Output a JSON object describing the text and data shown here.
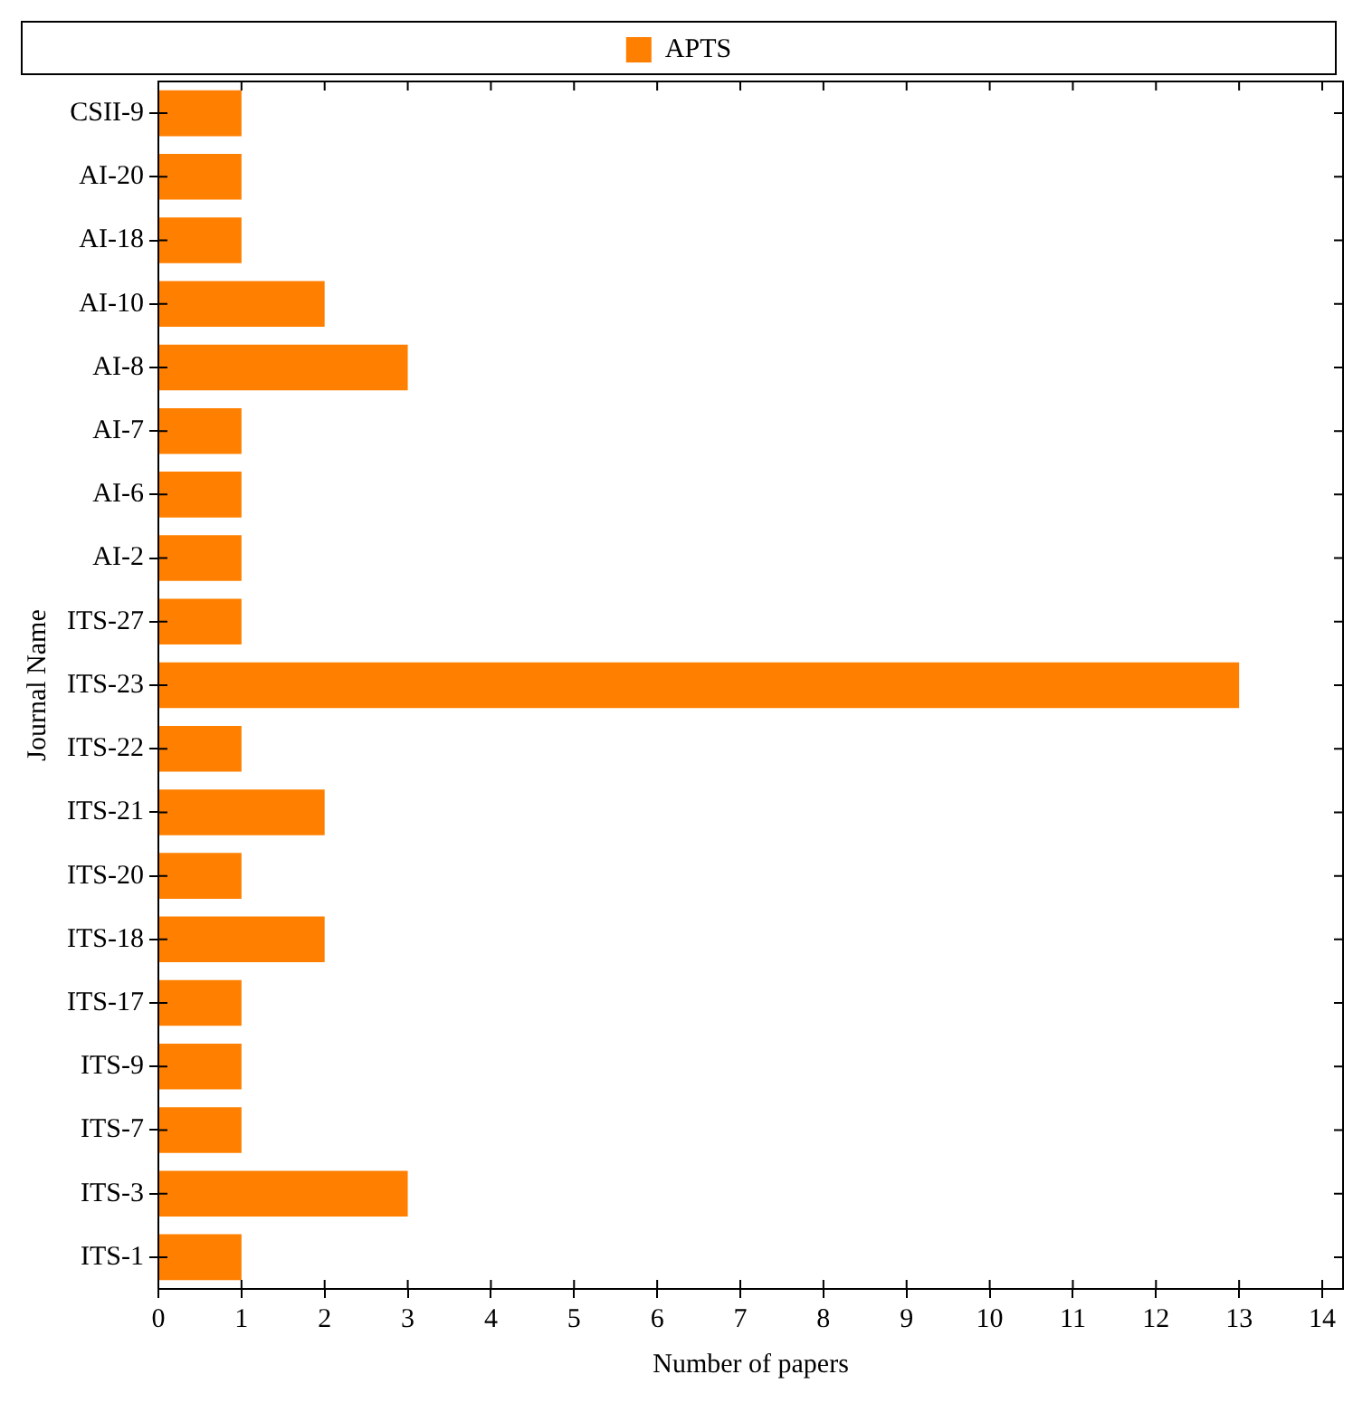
{
  "chart_data": {
    "type": "bar",
    "orientation": "horizontal",
    "xlabel": "Number of papers",
    "ylabel": "Journal Name",
    "categories": [
      "CSII-9",
      "AI-20",
      "AI-18",
      "AI-10",
      "AI-8",
      "AI-7",
      "AI-6",
      "AI-2",
      "ITS-27",
      "ITS-23",
      "ITS-22",
      "ITS-21",
      "ITS-20",
      "ITS-18",
      "ITS-17",
      "ITS-9",
      "ITS-7",
      "ITS-3",
      "ITS-1"
    ],
    "series": [
      {
        "name": "APTS",
        "color": "#ff8000",
        "values": [
          1,
          1,
          1,
          2,
          3,
          1,
          1,
          1,
          1,
          13,
          1,
          2,
          1,
          2,
          1,
          1,
          1,
          3,
          1
        ]
      }
    ],
    "xlim": [
      0,
      14.25
    ],
    "xticks": [
      0,
      1,
      2,
      3,
      4,
      5,
      6,
      7,
      8,
      9,
      10,
      11,
      12,
      13,
      14
    ],
    "grid": false,
    "legend": "top"
  }
}
